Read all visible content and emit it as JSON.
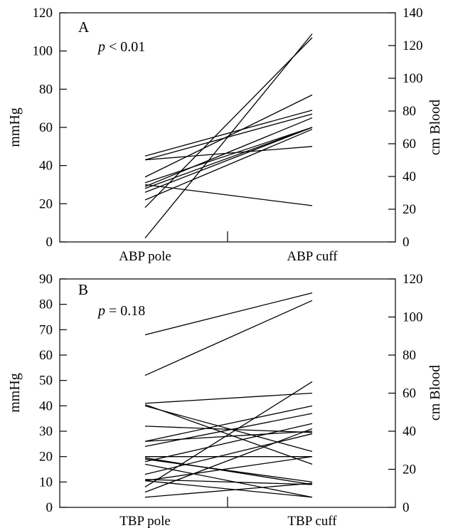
{
  "chart_data": [
    {
      "type": "line",
      "panel": "A",
      "annotation": {
        "var": "p",
        "rest": " < 0.01"
      },
      "categories": [
        "ABP pole",
        "ABP cuff"
      ],
      "ylabel": "mmHg",
      "ylim": [
        0,
        120
      ],
      "yticks": [
        0,
        20,
        40,
        60,
        80,
        100,
        120
      ],
      "y2label": "cm Blood",
      "y2lim": [
        0,
        140
      ],
      "y2ticks": [
        0,
        20,
        40,
        60,
        80,
        100,
        120,
        140
      ],
      "grid": false,
      "legend": "none",
      "series": [
        {
          "values": [
            2,
            109
          ]
        },
        {
          "values": [
            18,
            107
          ]
        },
        {
          "values": [
            34,
            77
          ]
        },
        {
          "values": [
            45,
            69
          ]
        },
        {
          "values": [
            43,
            67
          ]
        },
        {
          "values": [
            29,
            65
          ]
        },
        {
          "values": [
            31,
            60
          ]
        },
        {
          "values": [
            28,
            60
          ]
        },
        {
          "values": [
            22,
            59
          ]
        },
        {
          "values": [
            43,
            50
          ]
        },
        {
          "values": [
            30,
            19
          ]
        },
        {
          "values": [
            26,
            60
          ]
        }
      ]
    },
    {
      "type": "line",
      "panel": "B",
      "annotation": {
        "var": "p",
        "rest": " = 0.18"
      },
      "categories": [
        "TBP pole",
        "TBP cuff"
      ],
      "ylabel": "mmHg",
      "ylim": [
        0,
        90
      ],
      "yticks": [
        0,
        10,
        20,
        30,
        40,
        50,
        60,
        70,
        80,
        90
      ],
      "y2label": "cm Blood",
      "y2lim": [
        0,
        120
      ],
      "y2ticks": [
        0,
        20,
        40,
        60,
        80,
        100,
        120
      ],
      "grid": false,
      "legend": "none",
      "series": [
        {
          "values": [
            68,
            84.5
          ]
        },
        {
          "values": [
            52,
            81.5
          ]
        },
        {
          "values": [
            41,
            45
          ]
        },
        {
          "values": [
            40.5,
            17
          ]
        },
        {
          "values": [
            40,
            22
          ]
        },
        {
          "values": [
            32,
            29.5
          ]
        },
        {
          "values": [
            26,
            30
          ]
        },
        {
          "values": [
            26,
            40
          ]
        },
        {
          "values": [
            24,
            37
          ]
        },
        {
          "values": [
            20,
            20
          ]
        },
        {
          "values": [
            19.5,
            9
          ]
        },
        {
          "values": [
            19,
            10
          ]
        },
        {
          "values": [
            18,
            33
          ]
        },
        {
          "values": [
            17,
            4
          ]
        },
        {
          "values": [
            13,
            29
          ]
        },
        {
          "values": [
            11,
            9
          ]
        },
        {
          "values": [
            10.5,
            20
          ]
        },
        {
          "values": [
            10.5,
            4
          ]
        },
        {
          "values": [
            8,
            49.5
          ]
        },
        {
          "values": [
            6,
            31
          ]
        },
        {
          "values": [
            4,
            9.5
          ]
        }
      ]
    }
  ]
}
